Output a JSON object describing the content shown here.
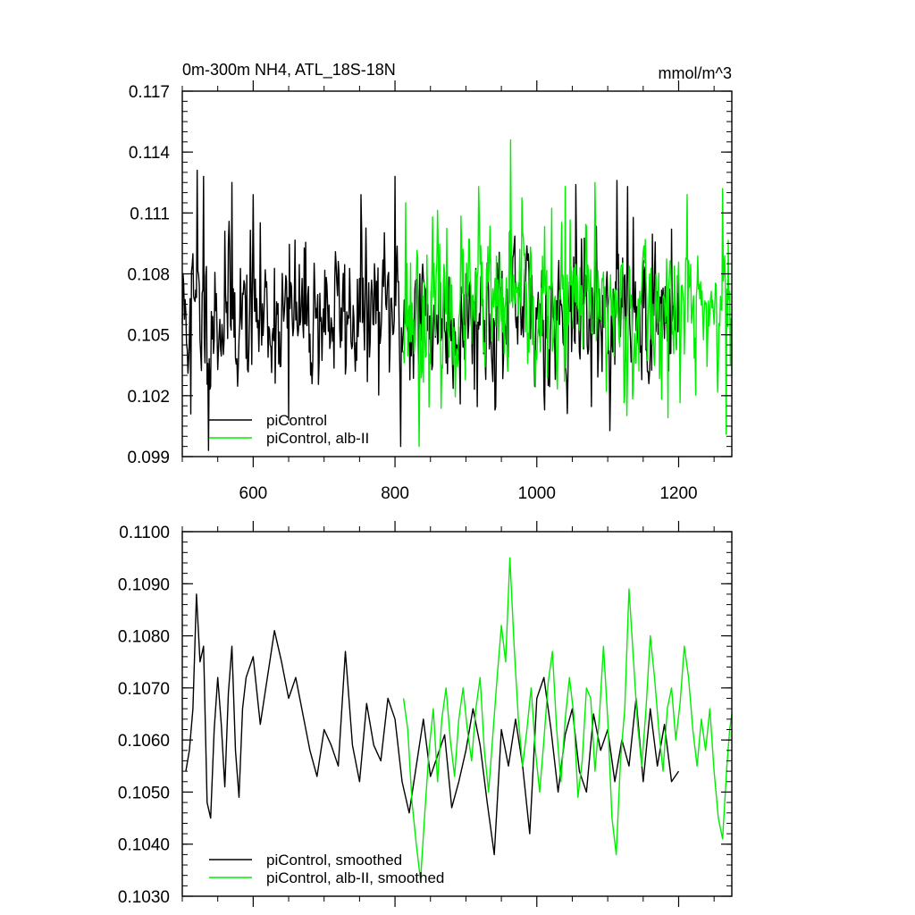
{
  "chart_data": [
    {
      "type": "line",
      "title": "0m-300m NH4, ATL_18S-18N",
      "units": "mmol/m^3",
      "xlabel": "",
      "ylabel": "",
      "xlim": [
        500,
        1275
      ],
      "ylim": [
        0.099,
        0.117
      ],
      "xticks": [
        600,
        800,
        1000,
        1200
      ],
      "xtick_labels": [
        "600",
        "800",
        "1000",
        "1200"
      ],
      "yticks": [
        0.099,
        0.102,
        0.105,
        0.108,
        0.111,
        0.114,
        0.117
      ],
      "ytick_labels": [
        "0.099",
        "0.102",
        "0.105",
        "0.108",
        "0.111",
        "0.114",
        "0.117"
      ],
      "grid": false,
      "legend_position": "bottom-left",
      "series": [
        {
          "name": "piControl",
          "color": "#000000",
          "x_start": 500,
          "x_end": 1200,
          "mean": 0.106,
          "stdev": 0.0018,
          "seed": 11,
          "anchors": [
            [
              512,
              0.1011
            ],
            [
              521,
              0.1131
            ],
            [
              530,
              0.1128
            ],
            [
              537,
              0.0993
            ],
            [
              560,
              0.1101
            ],
            [
              570,
              0.1125
            ],
            [
              600,
              0.1119
            ],
            [
              650,
              0.1008
            ],
            [
              752,
              0.1119
            ],
            [
              800,
              0.1128
            ],
            [
              808,
              0.0995
            ],
            [
              1055,
              0.1124
            ],
            [
              1113,
              0.1126
            ],
            [
              1128,
              0.1123
            ],
            [
              1190,
              0.1102
            ]
          ]
        },
        {
          "name": "piControl, alb-II",
          "color": "#00ee00",
          "x_start": 812,
          "x_end": 1275,
          "mean": 0.1062,
          "stdev": 0.0019,
          "seed": 23,
          "anchors": [
            [
              815,
              0.1115
            ],
            [
              834,
              0.0995
            ],
            [
              918,
              0.1123
            ],
            [
              963,
              0.1146
            ],
            [
              1040,
              0.1123
            ],
            [
              1082,
              0.1125
            ],
            [
              1212,
              0.1119
            ],
            [
              1262,
              0.1122
            ],
            [
              1267,
              0.1001
            ]
          ]
        }
      ]
    },
    {
      "type": "line",
      "title": "",
      "xlabel": "",
      "ylabel": "",
      "xlim": [
        500,
        1275
      ],
      "ylim": [
        0.103,
        0.11
      ],
      "xticks": [
        600,
        800,
        1000,
        1200
      ],
      "yticks": [
        0.103,
        0.104,
        0.105,
        0.106,
        0.107,
        0.108,
        0.109,
        0.11
      ],
      "ytick_labels": [
        "0.1030",
        "0.1040",
        "0.1050",
        "0.1060",
        "0.1070",
        "0.1080",
        "0.1090",
        "0.1100"
      ],
      "grid": false,
      "legend_position": "bottom-left",
      "series": [
        {
          "name": "piControl, smoothed",
          "color": "#000000",
          "x_start": 505,
          "x_end": 1200,
          "points": [
            [
              505,
              0.1054
            ],
            [
              510,
              0.1058
            ],
            [
              515,
              0.1066
            ],
            [
              520,
              0.1088
            ],
            [
              525,
              0.1075
            ],
            [
              530,
              0.1078
            ],
            [
              535,
              0.1048
            ],
            [
              540,
              0.1045
            ],
            [
              545,
              0.1062
            ],
            [
              550,
              0.1072
            ],
            [
              555,
              0.1063
            ],
            [
              560,
              0.1051
            ],
            [
              565,
              0.1069
            ],
            [
              570,
              0.1078
            ],
            [
              575,
              0.1058
            ],
            [
              580,
              0.1049
            ],
            [
              585,
              0.1066
            ],
            [
              590,
              0.1072
            ],
            [
              600,
              0.1076
            ],
            [
              610,
              0.1063
            ],
            [
              620,
              0.1072
            ],
            [
              630,
              0.1081
            ],
            [
              640,
              0.1075
            ],
            [
              650,
              0.1068
            ],
            [
              660,
              0.1072
            ],
            [
              670,
              0.1065
            ],
            [
              680,
              0.1058
            ],
            [
              690,
              0.1053
            ],
            [
              700,
              0.1062
            ],
            [
              710,
              0.1059
            ],
            [
              720,
              0.1055
            ],
            [
              730,
              0.1077
            ],
            [
              740,
              0.1059
            ],
            [
              750,
              0.1052
            ],
            [
              760,
              0.1067
            ],
            [
              770,
              0.1059
            ],
            [
              780,
              0.1056
            ],
            [
              790,
              0.1068
            ],
            [
              800,
              0.1064
            ],
            [
              810,
              0.1052
            ],
            [
              820,
              0.1046
            ],
            [
              830,
              0.1055
            ],
            [
              840,
              0.1064
            ],
            [
              850,
              0.1053
            ],
            [
              860,
              0.1057
            ],
            [
              870,
              0.1061
            ],
            [
              880,
              0.1047
            ],
            [
              890,
              0.1052
            ],
            [
              900,
              0.1058
            ],
            [
              910,
              0.1066
            ],
            [
              920,
              0.1059
            ],
            [
              930,
              0.1048
            ],
            [
              940,
              0.1038
            ],
            [
              950,
              0.1062
            ],
            [
              960,
              0.1055
            ],
            [
              970,
              0.1064
            ],
            [
              980,
              0.1055
            ],
            [
              990,
              0.1042
            ],
            [
              1000,
              0.1068
            ],
            [
              1010,
              0.1072
            ],
            [
              1020,
              0.1062
            ],
            [
              1030,
              0.105
            ],
            [
              1040,
              0.1061
            ],
            [
              1050,
              0.1066
            ],
            [
              1060,
              0.1054
            ],
            [
              1070,
              0.105
            ],
            [
              1080,
              0.1065
            ],
            [
              1090,
              0.1058
            ],
            [
              1100,
              0.1062
            ],
            [
              1110,
              0.1052
            ],
            [
              1120,
              0.106
            ],
            [
              1130,
              0.1055
            ],
            [
              1140,
              0.1068
            ],
            [
              1150,
              0.1052
            ],
            [
              1160,
              0.1066
            ],
            [
              1170,
              0.1055
            ],
            [
              1180,
              0.1063
            ],
            [
              1190,
              0.1052
            ],
            [
              1200,
              0.1054
            ]
          ]
        },
        {
          "name": "piControl, alb-II, smoothed",
          "color": "#00ee00",
          "x_start": 812,
          "x_end": 1275,
          "points": [
            [
              812,
              0.1068
            ],
            [
              818,
              0.1062
            ],
            [
              824,
              0.1048
            ],
            [
              830,
              0.104
            ],
            [
              836,
              0.1033
            ],
            [
              842,
              0.1046
            ],
            [
              848,
              0.1058
            ],
            [
              854,
              0.1066
            ],
            [
              860,
              0.1052
            ],
            [
              866,
              0.1064
            ],
            [
              872,
              0.107
            ],
            [
              878,
              0.106
            ],
            [
              884,
              0.1053
            ],
            [
              890,
              0.1064
            ],
            [
              896,
              0.107
            ],
            [
              902,
              0.1062
            ],
            [
              908,
              0.1056
            ],
            [
              914,
              0.1066
            ],
            [
              920,
              0.1072
            ],
            [
              926,
              0.1058
            ],
            [
              932,
              0.105
            ],
            [
              938,
              0.1061
            ],
            [
              944,
              0.1072
            ],
            [
              950,
              0.1082
            ],
            [
              956,
              0.1075
            ],
            [
              962,
              0.1095
            ],
            [
              968,
              0.1078
            ],
            [
              974,
              0.1064
            ],
            [
              980,
              0.1055
            ],
            [
              986,
              0.1062
            ],
            [
              992,
              0.107
            ],
            [
              998,
              0.1058
            ],
            [
              1004,
              0.105
            ],
            [
              1010,
              0.106
            ],
            [
              1016,
              0.1071
            ],
            [
              1022,
              0.1077
            ],
            [
              1028,
              0.1062
            ],
            [
              1034,
              0.1052
            ],
            [
              1040,
              0.1064
            ],
            [
              1046,
              0.1072
            ],
            [
              1052,
              0.1065
            ],
            [
              1058,
              0.1049
            ],
            [
              1064,
              0.1056
            ],
            [
              1070,
              0.107
            ],
            [
              1076,
              0.1068
            ],
            [
              1082,
              0.1054
            ],
            [
              1088,
              0.1064
            ],
            [
              1094,
              0.1078
            ],
            [
              1100,
              0.1064
            ],
            [
              1106,
              0.1045
            ],
            [
              1112,
              0.1038
            ],
            [
              1118,
              0.1056
            ],
            [
              1124,
              0.1066
            ],
            [
              1130,
              0.1089
            ],
            [
              1136,
              0.1076
            ],
            [
              1142,
              0.1063
            ],
            [
              1148,
              0.1055
            ],
            [
              1154,
              0.1066
            ],
            [
              1160,
              0.108
            ],
            [
              1166,
              0.1072
            ],
            [
              1172,
              0.1062
            ],
            [
              1178,
              0.1054
            ],
            [
              1184,
              0.1066
            ],
            [
              1190,
              0.107
            ],
            [
              1196,
              0.106
            ],
            [
              1202,
              0.1067
            ],
            [
              1208,
              0.1078
            ],
            [
              1214,
              0.1072
            ],
            [
              1220,
              0.1062
            ],
            [
              1226,
              0.1055
            ],
            [
              1232,
              0.1064
            ],
            [
              1238,
              0.1058
            ],
            [
              1244,
              0.1066
            ],
            [
              1250,
              0.1054
            ],
            [
              1256,
              0.1045
            ],
            [
              1262,
              0.1041
            ],
            [
              1268,
              0.1055
            ],
            [
              1272,
              0.1062
            ],
            [
              1275,
              0.1065
            ]
          ]
        }
      ]
    }
  ]
}
